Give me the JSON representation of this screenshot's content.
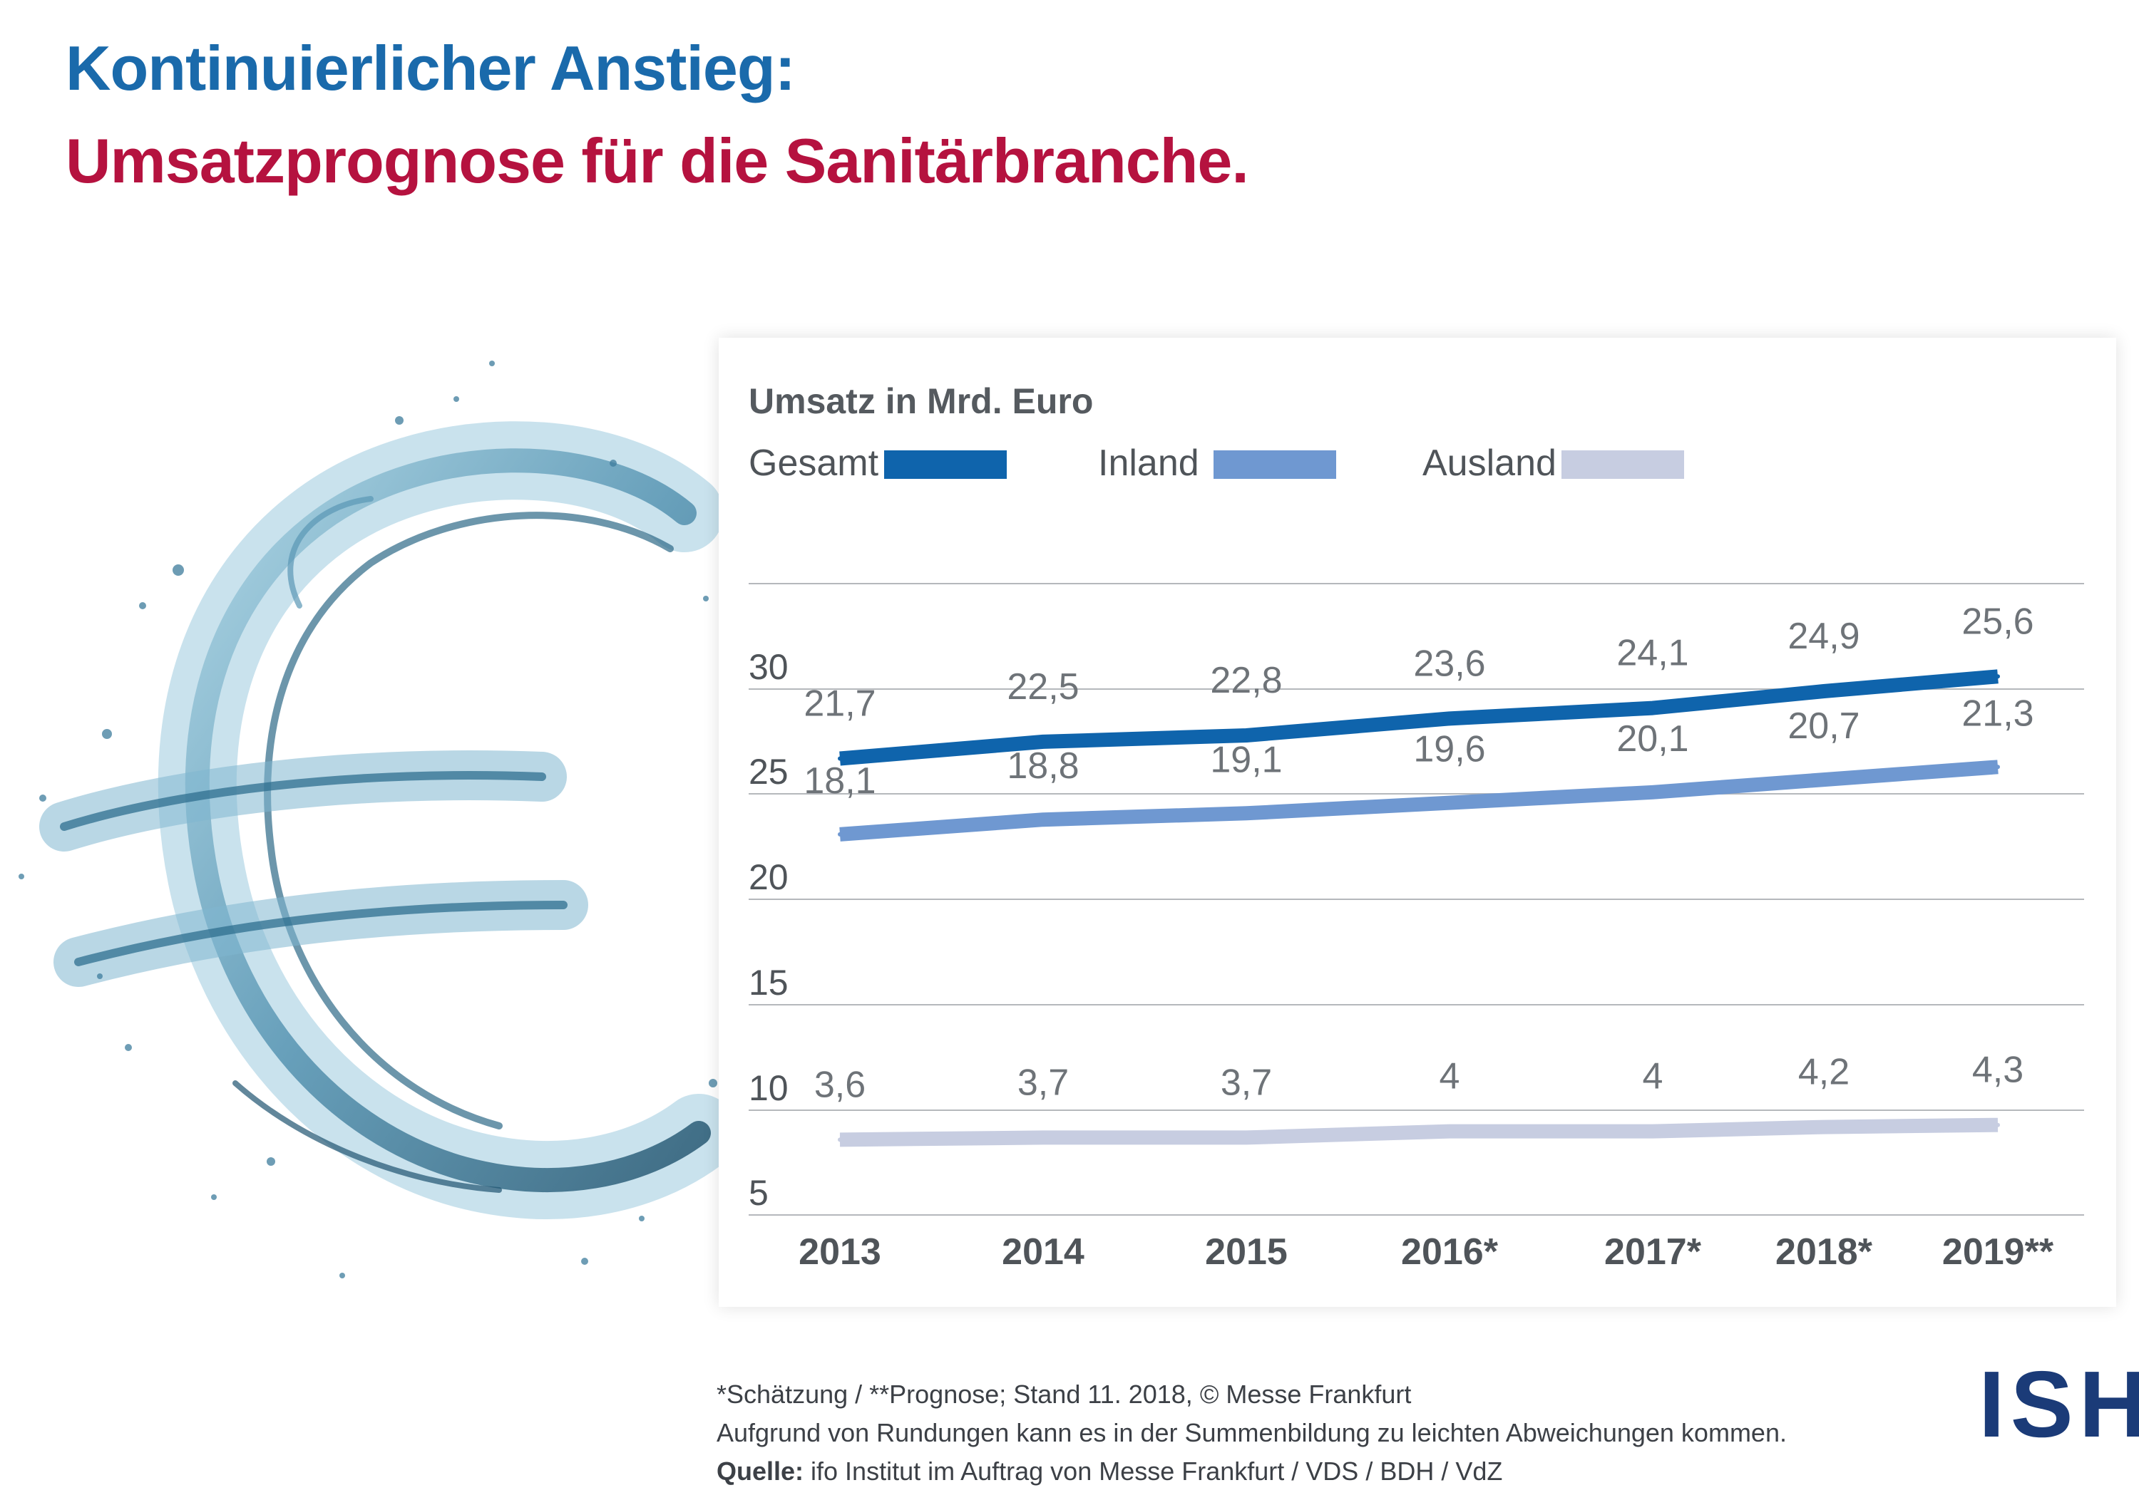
{
  "title": {
    "line1": "Kontinuierlicher Anstieg:",
    "line2": "Umsatzprognose für die Sanitärbranche."
  },
  "colors": {
    "title_blue": "#1a6aab",
    "title_red": "#b5123f",
    "gesamt": "#0f64ac",
    "inland": "#6f98d1",
    "ausland": "#c7cde1",
    "grid": "#b5b8bc",
    "value_text": "#6e7378",
    "axis_text": "#4f5459",
    "logo": "#1b3b78"
  },
  "chart_data": {
    "type": "line",
    "unit_label": "Umsatz in Mrd. Euro",
    "categories": [
      "2013",
      "2014",
      "2015",
      "2016*",
      "2017*",
      "2018*",
      "2019**"
    ],
    "series": [
      {
        "name": "Gesamt",
        "values": [
          21.7,
          22.5,
          22.8,
          23.6,
          24.1,
          24.9,
          25.6
        ],
        "labels": [
          "21,7",
          "22,5",
          "22,8",
          "23,6",
          "24,1",
          "24,9",
          "25,6"
        ]
      },
      {
        "name": "Inland",
        "values": [
          18.1,
          18.8,
          19.1,
          19.6,
          20.1,
          20.7,
          21.3
        ],
        "labels": [
          "18,1",
          "18,8",
          "19,1",
          "19,6",
          "20,1",
          "20,7",
          "21,3"
        ]
      },
      {
        "name": "Ausland",
        "values": [
          3.6,
          3.7,
          3.7,
          4.0,
          4.0,
          4.2,
          4.3
        ],
        "labels": [
          "3,6",
          "3,7",
          "3,7",
          "4",
          "4",
          "4,2",
          "4,3"
        ]
      }
    ],
    "y_ticks": [
      "30",
      "25",
      "20",
      "15",
      "10",
      "5"
    ],
    "ylabel": "",
    "xlabel": "",
    "grid": true,
    "legend_position": "top-left"
  },
  "legend": {
    "gesamt": "Gesamt",
    "inland": "Inland",
    "ausland": "Ausland"
  },
  "footnotes": {
    "line1": "*Schätzung / **Prognose; Stand 11. 2018, © Messe Frankfurt",
    "line2": "Aufgrund von Rundungen kann es in der Summenbildung zu leichten Abweichungen kommen.",
    "source_label": "Quelle:",
    "source_text": " ifo Institut im Auftrag von Messe Frankfurt / VDS / BDH / VdZ"
  },
  "logo": {
    "text": "ISH"
  }
}
